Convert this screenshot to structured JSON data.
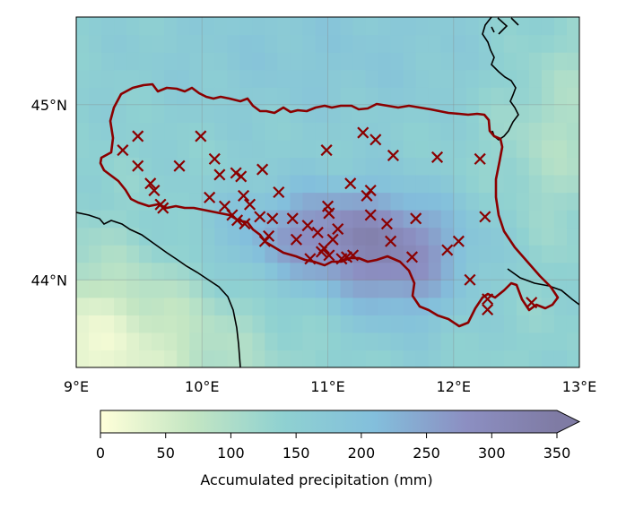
{
  "map": {
    "axes": {
      "lon_range": [
        9,
        13
      ],
      "lat_range": [
        43.5,
        45.5
      ],
      "x_ticks": [
        {
          "value": 9,
          "label": "9°E"
        },
        {
          "value": 10,
          "label": "10°E"
        },
        {
          "value": 11,
          "label": "11°E"
        },
        {
          "value": 12,
          "label": "12°E"
        },
        {
          "value": 13,
          "label": "13°E"
        }
      ],
      "y_ticks": [
        {
          "value": 45,
          "label": "45°N"
        },
        {
          "value": 44,
          "label": "44°N"
        }
      ],
      "gridlines": true
    },
    "colors": {
      "region_outline": "#8b0000",
      "station_marker": "#8b0000",
      "coastline": "#000000",
      "colormap_stops": [
        "#ffffd9",
        "#c4e6c3",
        "#8fd1d1",
        "#83bfdc",
        "#8c8fc2",
        "#7f7ba4"
      ]
    },
    "station_marker_symbol": "×",
    "region_name": "",
    "colorbar": {
      "label": "Accumulated precipitation (mm)",
      "ticks": [
        "0",
        "50",
        "100",
        "150",
        "200",
        "250",
        "300",
        "350"
      ],
      "range": [
        0,
        350
      ],
      "extend": "max"
    }
  },
  "chart_data": {
    "type": "heatmap",
    "title": "",
    "xlabel": "",
    "ylabel": "",
    "xlim": [
      9,
      13
    ],
    "ylim": [
      43.5,
      45.5
    ],
    "colorbar_label": "Accumulated precipitation (mm)",
    "colorbar_range": [
      0,
      350
    ],
    "stations": [
      {
        "lon": 9.37,
        "lat": 44.74
      },
      {
        "lon": 9.49,
        "lat": 44.82
      },
      {
        "lon": 9.49,
        "lat": 44.65
      },
      {
        "lon": 9.59,
        "lat": 44.55
      },
      {
        "lon": 9.62,
        "lat": 44.51
      },
      {
        "lon": 9.67,
        "lat": 44.43
      },
      {
        "lon": 9.69,
        "lat": 44.41
      },
      {
        "lon": 9.82,
        "lat": 44.65
      },
      {
        "lon": 9.99,
        "lat": 44.82
      },
      {
        "lon": 10.06,
        "lat": 44.47
      },
      {
        "lon": 10.1,
        "lat": 44.69
      },
      {
        "lon": 10.14,
        "lat": 44.6
      },
      {
        "lon": 10.18,
        "lat": 44.42
      },
      {
        "lon": 10.24,
        "lat": 44.37
      },
      {
        "lon": 10.27,
        "lat": 44.61
      },
      {
        "lon": 10.28,
        "lat": 44.34
      },
      {
        "lon": 10.31,
        "lat": 44.59
      },
      {
        "lon": 10.33,
        "lat": 44.48
      },
      {
        "lon": 10.34,
        "lat": 44.32
      },
      {
        "lon": 10.38,
        "lat": 44.43
      },
      {
        "lon": 10.46,
        "lat": 44.36
      },
      {
        "lon": 10.48,
        "lat": 44.63
      },
      {
        "lon": 10.5,
        "lat": 44.22
      },
      {
        "lon": 10.53,
        "lat": 44.25
      },
      {
        "lon": 10.56,
        "lat": 44.35
      },
      {
        "lon": 10.61,
        "lat": 44.5
      },
      {
        "lon": 10.72,
        "lat": 44.35
      },
      {
        "lon": 10.75,
        "lat": 44.23
      },
      {
        "lon": 10.84,
        "lat": 44.31
      },
      {
        "lon": 10.86,
        "lat": 44.12
      },
      {
        "lon": 10.92,
        "lat": 44.27
      },
      {
        "lon": 10.95,
        "lat": 44.16
      },
      {
        "lon": 10.97,
        "lat": 44.18
      },
      {
        "lon": 10.99,
        "lat": 44.74
      },
      {
        "lon": 11.0,
        "lat": 44.42
      },
      {
        "lon": 11.01,
        "lat": 44.38
      },
      {
        "lon": 11.01,
        "lat": 44.14
      },
      {
        "lon": 11.04,
        "lat": 44.23
      },
      {
        "lon": 11.08,
        "lat": 44.29
      },
      {
        "lon": 11.11,
        "lat": 44.12
      },
      {
        "lon": 11.15,
        "lat": 44.13
      },
      {
        "lon": 11.18,
        "lat": 44.55
      },
      {
        "lon": 11.2,
        "lat": 44.14
      },
      {
        "lon": 11.28,
        "lat": 44.84
      },
      {
        "lon": 11.31,
        "lat": 44.48
      },
      {
        "lon": 11.34,
        "lat": 44.51
      },
      {
        "lon": 11.34,
        "lat": 44.37
      },
      {
        "lon": 11.38,
        "lat": 44.8
      },
      {
        "lon": 11.47,
        "lat": 44.32
      },
      {
        "lon": 11.5,
        "lat": 44.22
      },
      {
        "lon": 11.52,
        "lat": 44.71
      },
      {
        "lon": 11.67,
        "lat": 44.13
      },
      {
        "lon": 11.7,
        "lat": 44.35
      },
      {
        "lon": 11.87,
        "lat": 44.7
      },
      {
        "lon": 11.95,
        "lat": 44.17
      },
      {
        "lon": 12.04,
        "lat": 44.22
      },
      {
        "lon": 12.13,
        "lat": 44.0
      },
      {
        "lon": 12.21,
        "lat": 44.69
      },
      {
        "lon": 12.25,
        "lat": 44.36
      },
      {
        "lon": 12.27,
        "lat": 43.89
      },
      {
        "lon": 12.27,
        "lat": 43.83
      },
      {
        "lon": 12.62,
        "lat": 43.87
      }
    ]
  }
}
